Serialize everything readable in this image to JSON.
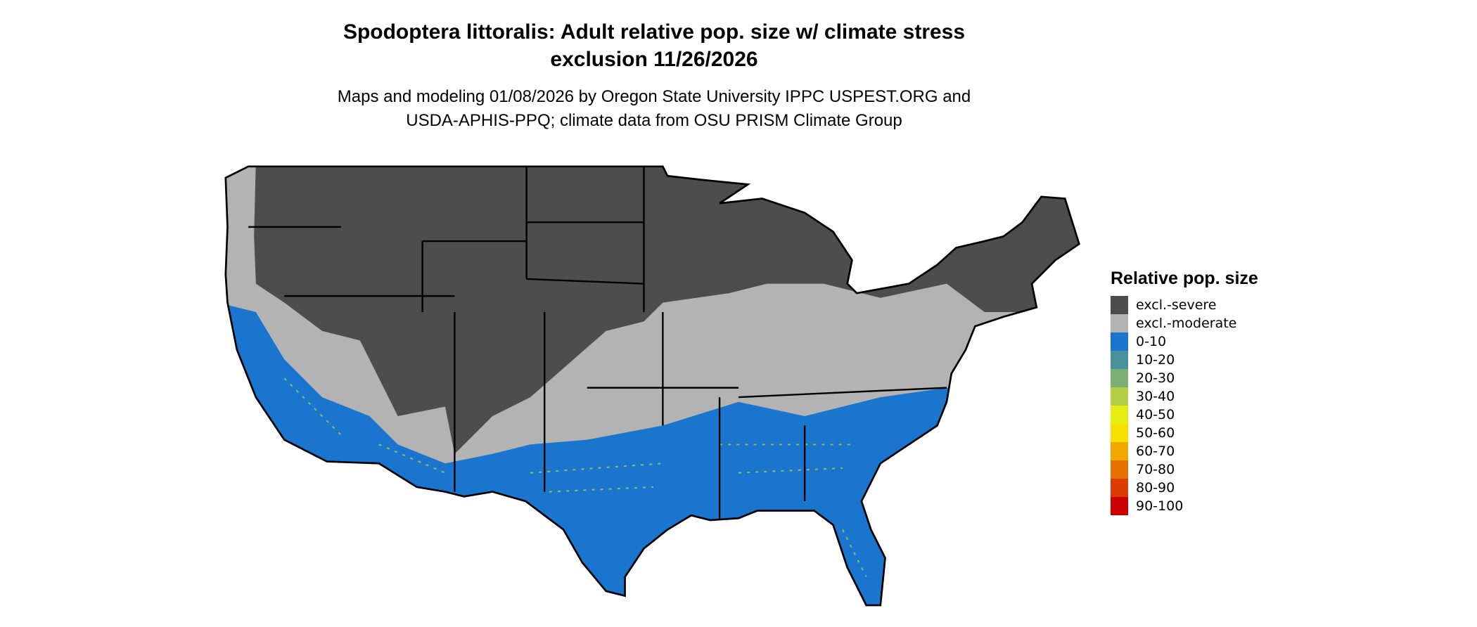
{
  "title_line1": "Spodoptera littoralis: Adult relative pop. size w/ climate stress",
  "title_line2": "exclusion 11/26/2026",
  "subtitle_line1": "Maps and modeling 01/08/2026 by Oregon State University IPPC USPEST.ORG and",
  "subtitle_line2": "USDA-APHIS-PPQ; climate data from OSU PRISM Climate Group",
  "legend": {
    "title": "Relative pop. size",
    "items": [
      {
        "label": "excl.-severe",
        "color": "#4d4d4d"
      },
      {
        "label": "excl.-moderate",
        "color": "#b3b3b3"
      },
      {
        "label": "0-10",
        "color": "#1a75cf"
      },
      {
        "label": "10-20",
        "color": "#48929e"
      },
      {
        "label": "20-30",
        "color": "#7cae74"
      },
      {
        "label": "30-40",
        "color": "#b3cf45"
      },
      {
        "label": "40-50",
        "color": "#e5ef16"
      },
      {
        "label": "50-60",
        "color": "#f8e000"
      },
      {
        "label": "60-70",
        "color": "#f0a800"
      },
      {
        "label": "70-80",
        "color": "#e57200"
      },
      {
        "label": "80-90",
        "color": "#db3a00"
      },
      {
        "label": "90-100",
        "color": "#cc0000"
      }
    ]
  }
}
